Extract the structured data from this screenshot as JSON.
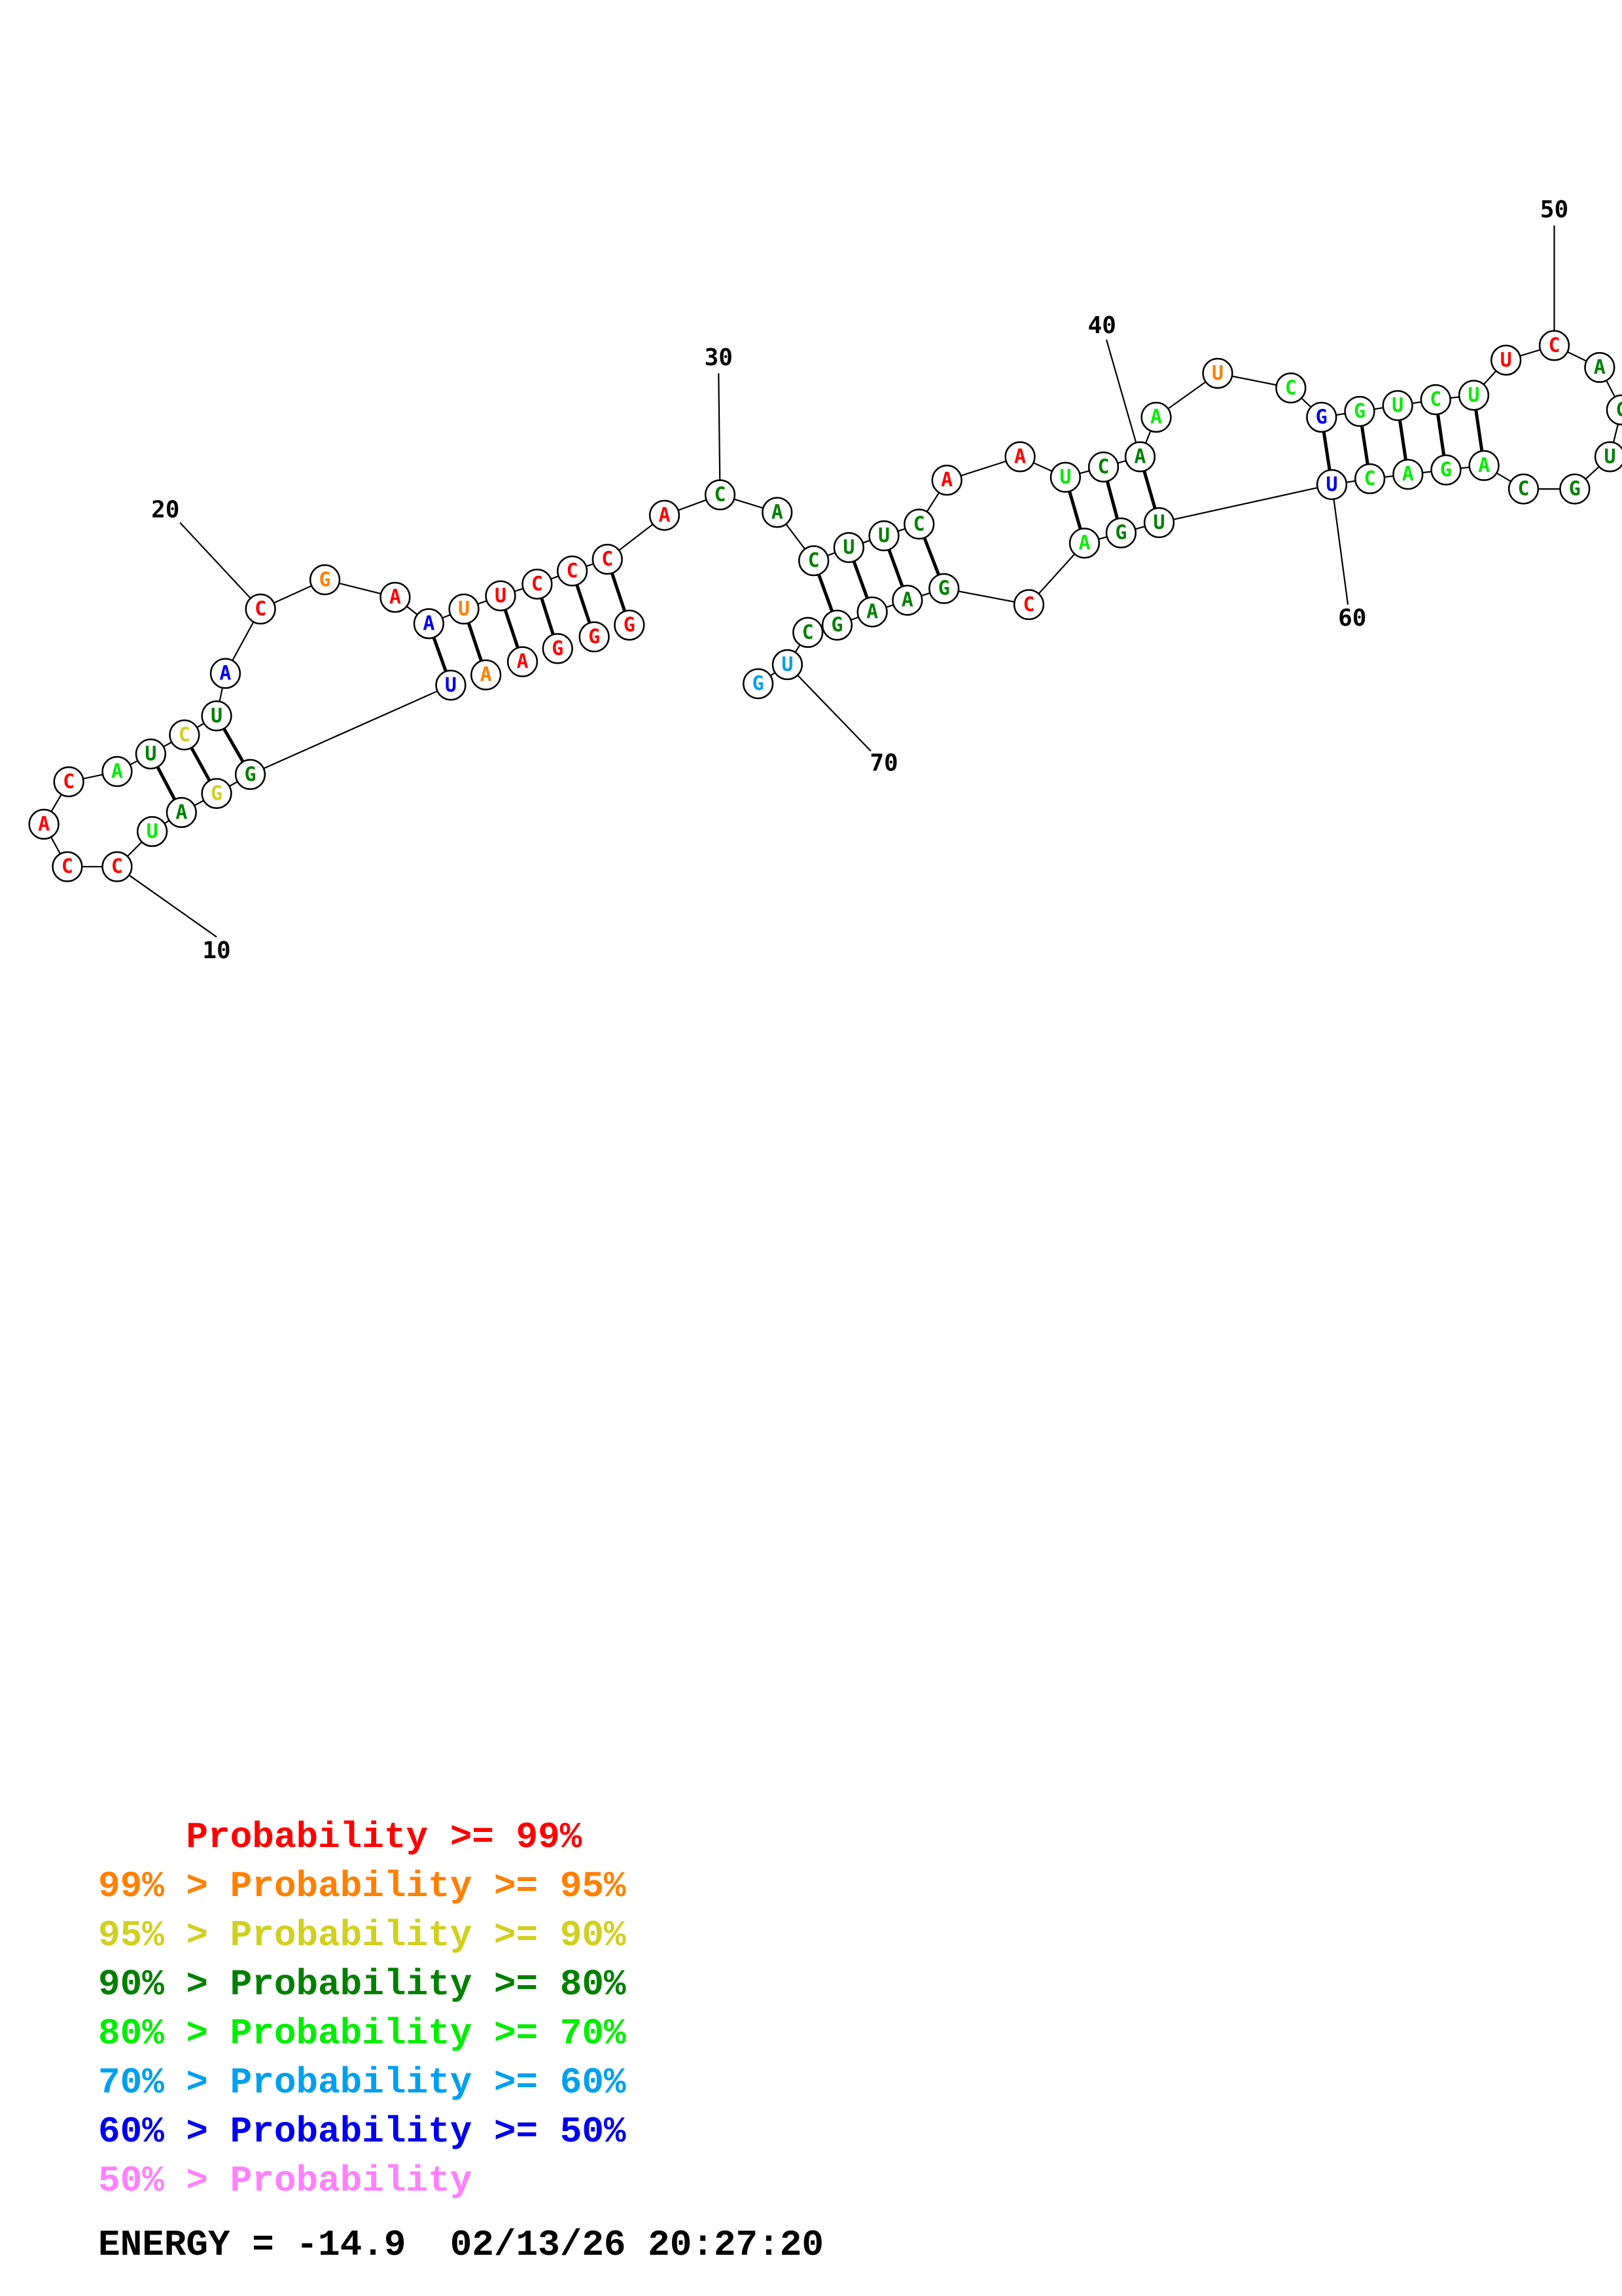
{
  "colors": {
    "p99": "#ff0000",
    "p95": "#ff8000",
    "p90": "#d0d020",
    "p80": "#008000",
    "p70": "#00ee00",
    "p60": "#00a0ee",
    "p50": "#0000ee",
    "plow": "#ff80ff"
  },
  "legend": [
    {
      "text": "    Probability >= 99%",
      "color": "p99"
    },
    {
      "text": "99% > Probability >= 95%",
      "color": "p95"
    },
    {
      "text": "95% > Probability >= 90%",
      "color": "p90"
    },
    {
      "text": "90% > Probability >= 80%",
      "color": "p80"
    },
    {
      "text": "80% > Probability >= 70%",
      "color": "p70"
    },
    {
      "text": "70% > Probability >= 60%",
      "color": "p60"
    },
    {
      "text": "60% > Probability >= 50%",
      "color": "p50"
    },
    {
      "text": "50% > Probability",
      "color": "plow"
    }
  ],
  "footer": {
    "energy": "ENERGY = -14.9  02/13/26 20:27:20"
  },
  "index_labels": [
    {
      "label": "10",
      "nt": 10
    },
    {
      "label": "20",
      "nt": 20
    },
    {
      "label": "30",
      "nt": 30
    },
    {
      "label": "40",
      "nt": 40
    },
    {
      "label": "50",
      "nt": 50
    },
    {
      "label": "60",
      "nt": 60
    },
    {
      "label": "70",
      "nt": 70
    }
  ],
  "pairs": [
    [
      3,
      13
    ],
    [
      4,
      12
    ],
    [
      5,
      11
    ],
    [
      22,
      65
    ],
    [
      24,
      63
    ],
    [
      25,
      62
    ],
    [
      26,
      61
    ],
    [
      27,
      60
    ],
    [
      28,
      59
    ],
    [
      35,
      58
    ],
    [
      36,
      57
    ],
    [
      37,
      56
    ],
    [
      38,
      55
    ],
    [
      43,
      52
    ],
    [
      44,
      51
    ],
    [
      45,
      50
    ],
    [
      46,
      49
    ],
    [
      6,
      12
    ],
    [
      7,
      11
    ],
    [
      8,
      10
    ]
  ],
  "nucleotides": []
}
